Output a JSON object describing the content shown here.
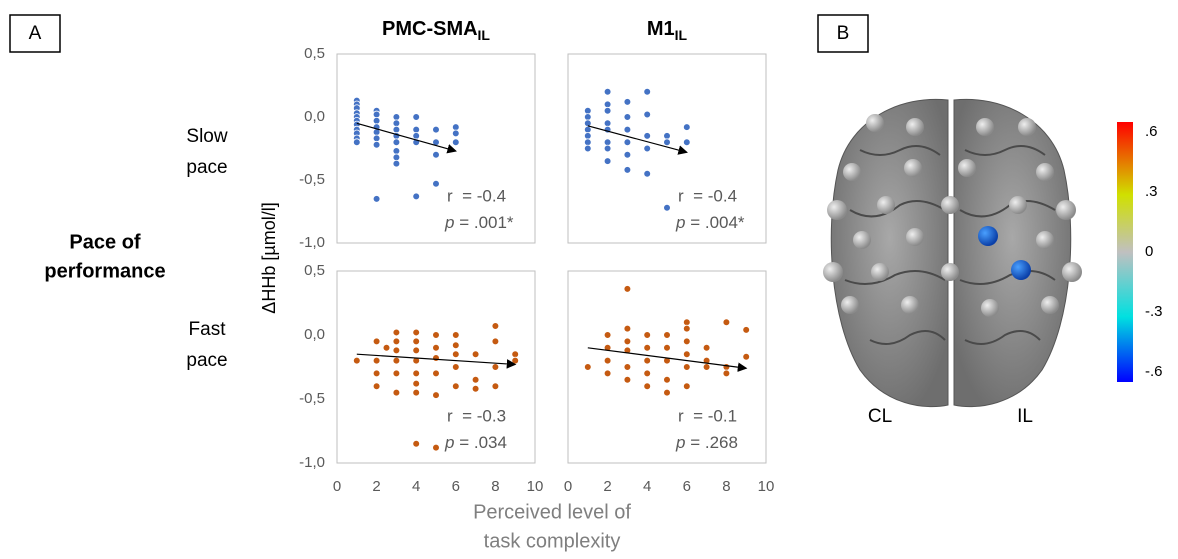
{
  "figure": {
    "panel_labels": [
      "A",
      "B"
    ],
    "column_titles": [
      {
        "text": "PMC-SMA",
        "sub": "IL"
      },
      {
        "text": "M1",
        "sub": "IL"
      }
    ],
    "group_label": [
      "Pace of",
      "performance"
    ],
    "row_labels": [
      [
        "Slow",
        "pace"
      ],
      [
        "Fast",
        "pace"
      ]
    ],
    "y_label": "ΔHHb [µmol/l]",
    "x_label": [
      "Perceived level of",
      "task complexity"
    ],
    "colorbar": {
      "lim": [
        -0.65,
        0.65
      ],
      "ticks": [
        {
          "value": 0.6,
          "label": ".6"
        },
        {
          "value": 0.3,
          "label": ".3"
        },
        0,
        {
          "value": -0.3,
          "label": "-.3"
        },
        {
          "value": -0.6,
          "label": "-.6"
        }
      ]
    },
    "hemispheres": [
      "CL",
      "IL"
    ]
  },
  "chart_data": [
    {
      "type": "scatter",
      "color": "#4472c4",
      "xlim": [
        0,
        10
      ],
      "ylim": [
        -1,
        0.5
      ],
      "yticks": [
        {
          "value": 0.5,
          "label": "0,5"
        },
        {
          "value": 0,
          "label": "0,0"
        },
        {
          "value": -0.5,
          "label": "-0,5"
        },
        {
          "value": -1,
          "label": "-1,0"
        }
      ],
      "x": [
        1,
        1,
        1,
        1,
        1,
        1,
        1,
        1,
        1,
        1,
        1,
        2,
        2,
        2,
        2,
        2,
        2,
        2,
        2,
        3,
        3,
        3,
        3,
        3,
        3,
        3,
        3,
        4,
        4,
        4,
        4,
        4,
        5,
        5,
        5,
        5,
        6,
        6,
        6
      ],
      "values": [
        0.13,
        0.1,
        0.07,
        0.03,
        0,
        -0.03,
        -0.06,
        -0.1,
        -0.13,
        -0.17,
        -0.2,
        0.05,
        0.02,
        -0.03,
        -0.08,
        -0.12,
        -0.17,
        -0.22,
        -0.65,
        0,
        -0.05,
        -0.1,
        -0.15,
        -0.2,
        -0.27,
        -0.32,
        -0.37,
        0,
        -0.1,
        -0.15,
        -0.2,
        -0.63,
        -0.1,
        -0.2,
        -0.3,
        -0.53,
        -0.08,
        -0.13,
        -0.2
      ],
      "trend": {
        "x": [
          1,
          6
        ],
        "y": [
          -0.05,
          -0.27
        ]
      },
      "annotations": {
        "r": "r  = -0.4",
        "p": "p",
        "p_rest": " = .001*"
      }
    },
    {
      "type": "scatter",
      "color": "#4472c4",
      "xlim": [
        0,
        10
      ],
      "ylim": [
        -1,
        0.5
      ],
      "x": [
        1,
        1,
        1,
        1,
        1,
        1,
        1,
        2,
        2,
        2,
        2,
        2,
        2,
        2,
        2,
        3,
        3,
        3,
        3,
        3,
        3,
        4,
        4,
        4,
        4,
        4,
        5,
        5,
        5,
        6,
        6
      ],
      "values": [
        0.05,
        0,
        -0.05,
        -0.1,
        -0.15,
        -0.2,
        -0.25,
        0.2,
        0.1,
        0.05,
        -0.05,
        -0.1,
        -0.2,
        -0.25,
        -0.35,
        0.12,
        0,
        -0.1,
        -0.2,
        -0.3,
        -0.42,
        0.2,
        0.02,
        -0.15,
        -0.25,
        -0.45,
        -0.15,
        -0.2,
        -0.72,
        -0.08,
        -0.2
      ],
      "trend": {
        "x": [
          1,
          6
        ],
        "y": [
          -0.07,
          -0.28
        ]
      },
      "annotations": {
        "r": "r  = -0.4",
        "p": "p",
        "p_rest": " = .004*"
      }
    },
    {
      "type": "scatter",
      "color": "#c55a11",
      "xlim": [
        0,
        10
      ],
      "ylim": [
        -1,
        0.5
      ],
      "xticks": [
        0,
        2,
        4,
        6,
        8,
        10
      ],
      "yticks": [
        {
          "value": 0.5,
          "label": "0,5"
        },
        {
          "value": 0,
          "label": "0,0"
        },
        {
          "value": -0.5,
          "label": "-0,5"
        },
        {
          "value": -1,
          "label": "-1,0"
        }
      ],
      "x": [
        1,
        2,
        2,
        2,
        2,
        2.5,
        3,
        3,
        3,
        3,
        3,
        3,
        4,
        4,
        4,
        4,
        4,
        4,
        4,
        4,
        5,
        5,
        5,
        5,
        5,
        5,
        6,
        6,
        6,
        6,
        6,
        7,
        7,
        7,
        8,
        8,
        8,
        8,
        9,
        9
      ],
      "values": [
        -0.2,
        -0.05,
        -0.2,
        -0.3,
        -0.4,
        -0.1,
        0.02,
        -0.05,
        -0.12,
        -0.2,
        -0.3,
        -0.45,
        0.02,
        -0.05,
        -0.12,
        -0.2,
        -0.3,
        -0.38,
        -0.45,
        -0.85,
        0,
        -0.1,
        -0.18,
        -0.3,
        -0.47,
        -0.88,
        0,
        -0.08,
        -0.15,
        -0.25,
        -0.4,
        -0.15,
        -0.35,
        -0.42,
        0.07,
        -0.05,
        -0.25,
        -0.4,
        -0.15,
        -0.2
      ],
      "trend": {
        "x": [
          1,
          9
        ],
        "y": [
          -0.15,
          -0.23
        ]
      },
      "annotations": {
        "r": "r  = -0.3",
        "p": "p",
        "p_rest": " = .034"
      }
    },
    {
      "type": "scatter",
      "color": "#c55a11",
      "xlim": [
        0,
        10
      ],
      "ylim": [
        -1,
        0.5
      ],
      "xticks": [
        0,
        2,
        4,
        6,
        8,
        10
      ],
      "x": [
        1,
        2,
        2,
        2,
        2,
        3,
        3,
        3,
        3,
        3,
        3,
        4,
        4,
        4,
        4,
        4,
        5,
        5,
        5,
        5,
        5,
        6,
        6,
        6,
        6,
        6,
        6,
        7,
        7,
        7,
        8,
        8,
        8,
        9,
        9
      ],
      "values": [
        -0.25,
        0,
        -0.1,
        -0.2,
        -0.3,
        0.36,
        0.05,
        -0.05,
        -0.12,
        -0.25,
        -0.35,
        0,
        -0.1,
        -0.2,
        -0.3,
        -0.4,
        0,
        -0.1,
        -0.2,
        -0.35,
        -0.45,
        0.1,
        0.05,
        -0.05,
        -0.15,
        -0.25,
        -0.4,
        -0.1,
        -0.2,
        -0.25,
        0.1,
        -0.25,
        -0.3,
        0.04,
        -0.17
      ],
      "trend": {
        "x": [
          1,
          9
        ],
        "y": [
          -0.1,
          -0.26
        ]
      },
      "annotations": {
        "r": "r  = -0.1",
        "p": "p",
        "p_rest": " = .268"
      }
    }
  ]
}
